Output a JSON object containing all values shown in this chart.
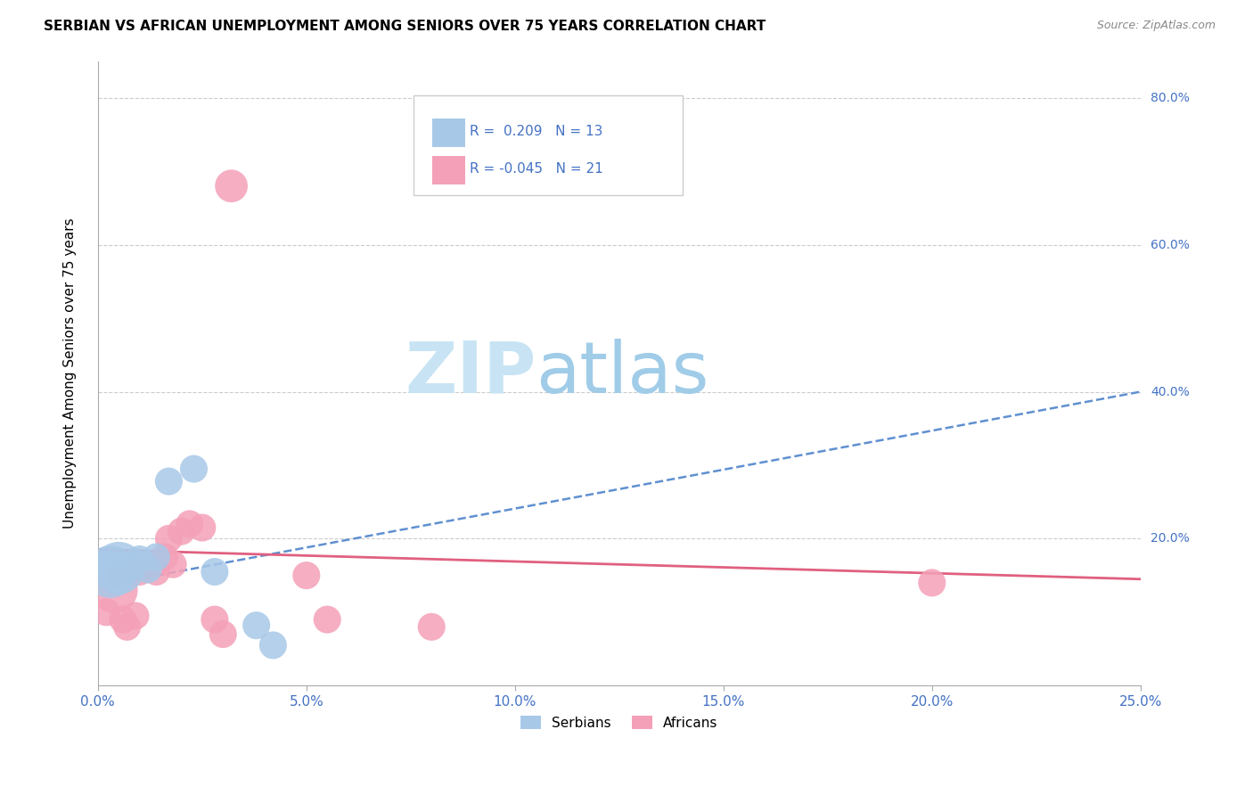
{
  "title": "SERBIAN VS AFRICAN UNEMPLOYMENT AMONG SENIORS OVER 75 YEARS CORRELATION CHART",
  "source": "Source: ZipAtlas.com",
  "ylabel_label": "Unemployment Among Seniors over 75 years",
  "xlim": [
    0.0,
    0.25
  ],
  "ylim": [
    0.0,
    0.85
  ],
  "xticks": [
    0.0,
    0.05,
    0.1,
    0.15,
    0.2,
    0.25
  ],
  "x_tick_labels": [
    "0.0%",
    "5.0%",
    "10.0%",
    "15.0%",
    "20.0%",
    "25.0%"
  ],
  "yticks": [
    0.2,
    0.4,
    0.6,
    0.8
  ],
  "right_ytick_labels": [
    "20.0%",
    "40.0%",
    "60.0%",
    "80.0%"
  ],
  "serbian_color": "#a8c8e8",
  "african_color": "#f4a0b8",
  "serbian_line_color": "#6090d0",
  "african_line_color": "#e06080",
  "serbian_points": [
    [
      0.003,
      0.155
    ],
    [
      0.005,
      0.16
    ],
    [
      0.006,
      0.15
    ],
    [
      0.007,
      0.162
    ],
    [
      0.009,
      0.168
    ],
    [
      0.01,
      0.172
    ],
    [
      0.012,
      0.158
    ],
    [
      0.014,
      0.175
    ],
    [
      0.017,
      0.278
    ],
    [
      0.023,
      0.295
    ],
    [
      0.028,
      0.155
    ],
    [
      0.038,
      0.082
    ],
    [
      0.042,
      0.055
    ]
  ],
  "african_points": [
    [
      0.002,
      0.1
    ],
    [
      0.004,
      0.13
    ],
    [
      0.006,
      0.09
    ],
    [
      0.007,
      0.08
    ],
    [
      0.009,
      0.095
    ],
    [
      0.01,
      0.155
    ],
    [
      0.012,
      0.165
    ],
    [
      0.014,
      0.155
    ],
    [
      0.016,
      0.175
    ],
    [
      0.017,
      0.2
    ],
    [
      0.018,
      0.165
    ],
    [
      0.02,
      0.21
    ],
    [
      0.022,
      0.22
    ],
    [
      0.025,
      0.215
    ],
    [
      0.028,
      0.09
    ],
    [
      0.03,
      0.07
    ],
    [
      0.032,
      0.68
    ],
    [
      0.05,
      0.15
    ],
    [
      0.055,
      0.09
    ],
    [
      0.08,
      0.08
    ],
    [
      0.2,
      0.14
    ]
  ],
  "serbian_sizes": [
    1800,
    1800,
    500,
    500,
    500,
    500,
    500,
    500,
    500,
    500,
    500,
    500,
    500
  ],
  "african_sizes": [
    500,
    1400,
    500,
    500,
    500,
    500,
    500,
    500,
    500,
    500,
    500,
    500,
    500,
    500,
    500,
    500,
    700,
    500,
    500,
    500,
    500
  ],
  "serbian_trendline": [
    [
      0.0,
      0.135
    ],
    [
      0.25,
      0.4
    ]
  ],
  "african_trendline": [
    [
      0.0,
      0.185
    ],
    [
      0.25,
      0.145
    ]
  ]
}
